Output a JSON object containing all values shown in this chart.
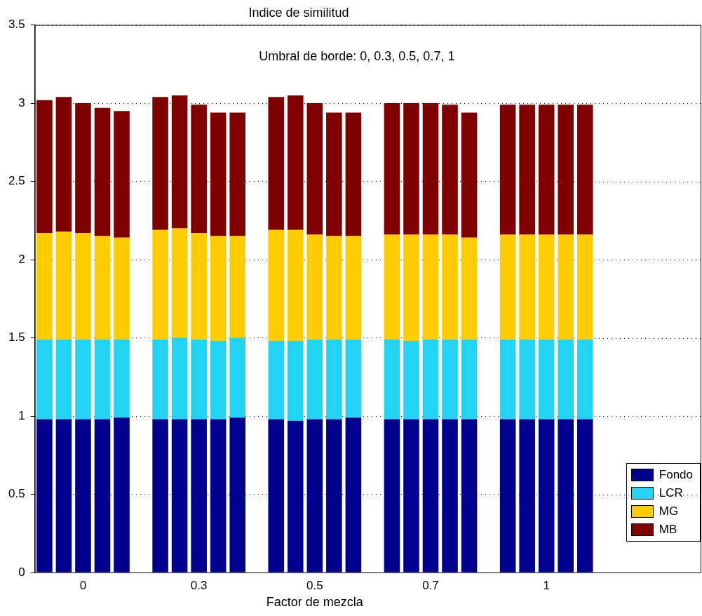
{
  "chart_data": {
    "type": "bar",
    "title": "Indice de similitud",
    "xlabel": "Factor de mezcla",
    "annotations": [
      "Umbral de borde: 0, 0.3, 0.5, 0.7, 1"
    ],
    "categories": [
      null,
      null,
      "0",
      null,
      null,
      null,
      null,
      null,
      "0.3",
      null,
      null,
      null,
      null,
      null,
      "0.5",
      null,
      null,
      null,
      null,
      null,
      "0.7",
      null,
      null,
      null,
      null,
      null,
      "1",
      null,
      null
    ],
    "stacked": true,
    "ylim": [
      0,
      3.5
    ],
    "yticks": [
      0,
      0.5,
      1,
      1.5,
      2,
      2.5,
      3,
      3.5
    ],
    "grid": "y",
    "legend": "bottom right",
    "series": [
      {
        "name": "Fondo",
        "color": "#00008f",
        "values": [
          0.98,
          0.98,
          0.98,
          0.98,
          0.99,
          null,
          0.98,
          0.98,
          0.98,
          0.98,
          0.99,
          null,
          0.98,
          0.97,
          0.98,
          0.98,
          0.99,
          null,
          0.98,
          0.98,
          0.98,
          0.98,
          0.98,
          null,
          0.98,
          0.98,
          0.98,
          0.98,
          0.98
        ]
      },
      {
        "name": "LCR",
        "color": "#22d4f2",
        "values": [
          0.51,
          0.51,
          0.51,
          0.51,
          0.5,
          null,
          0.51,
          0.52,
          0.51,
          0.5,
          0.51,
          null,
          0.5,
          0.51,
          0.51,
          0.51,
          0.5,
          null,
          0.51,
          0.5,
          0.51,
          0.51,
          0.51,
          null,
          0.51,
          0.51,
          0.51,
          0.51,
          0.51
        ]
      },
      {
        "name": "MG",
        "color": "#ffcc00",
        "values": [
          0.68,
          0.69,
          0.68,
          0.66,
          0.65,
          null,
          0.7,
          0.7,
          0.68,
          0.67,
          0.65,
          null,
          0.71,
          0.71,
          0.67,
          0.66,
          0.66,
          null,
          0.67,
          0.68,
          0.67,
          0.67,
          0.65,
          null,
          0.67,
          0.67,
          0.67,
          0.67,
          0.67
        ]
      },
      {
        "name": "MB",
        "color": "#800000",
        "values": [
          0.85,
          0.86,
          0.83,
          0.82,
          0.81,
          null,
          0.85,
          0.85,
          0.82,
          0.79,
          0.79,
          null,
          0.85,
          0.86,
          0.84,
          0.79,
          0.79,
          null,
          0.84,
          0.84,
          0.84,
          0.83,
          0.8,
          null,
          0.83,
          0.83,
          0.83,
          0.83,
          0.83
        ]
      }
    ]
  }
}
